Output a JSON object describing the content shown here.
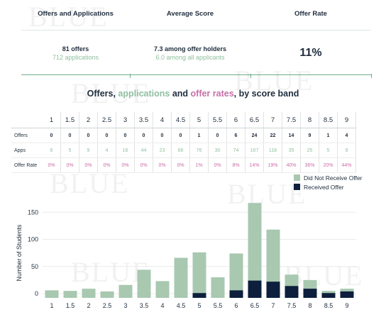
{
  "summary": {
    "col1": {
      "heading": "Offers and Applications",
      "line1": "81 offers",
      "line2": "712 applications"
    },
    "col2": {
      "heading": "Average Score",
      "line1": "7.3 among offer holders",
      "line2": "6.0 among all applicants"
    },
    "col3": {
      "heading": "Offer Rate",
      "value": "11%"
    }
  },
  "title": {
    "part1": "Offers, ",
    "part2": "applications",
    "part3": " and ",
    "part4": "offer rates",
    "part5": ", by score band"
  },
  "table": {
    "row_labels": [
      "Offers",
      "Apps",
      "Offer Rate"
    ],
    "bands": [
      "1",
      "1.5",
      "2",
      "2.5",
      "3",
      "3.5",
      "4",
      "4.5",
      "5",
      "5.5",
      "6",
      "6.5",
      "7",
      "7.5",
      "8",
      "8.5",
      "9"
    ],
    "offers": [
      "0",
      "0",
      "0",
      "0",
      "0",
      "0",
      "0",
      "0",
      "1",
      "0",
      "6",
      "24",
      "22",
      "14",
      "9",
      "1",
      "4"
    ],
    "apps": [
      "6",
      "5",
      "9",
      "4",
      "16",
      "44",
      "23",
      "66",
      "76",
      "30",
      "74",
      "167",
      "118",
      "35",
      "25",
      "5",
      "9"
    ],
    "rates": [
      "0%",
      "0%",
      "0%",
      "0%",
      "0%",
      "0%",
      "0%",
      "0%",
      "1%",
      "0%",
      "8%",
      "14%",
      "19%",
      "40%",
      "36%",
      "20%",
      "44%"
    ]
  },
  "watermark": "BLUE",
  "colors": {
    "not_offer": "#a8c8b0",
    "offer": "#0d1f3c",
    "apps": "#8fbf9f",
    "rate": "#c86fa8",
    "text": "#1f2d3d"
  },
  "chart_data": {
    "type": "bar",
    "stacked": true,
    "categories": [
      "1",
      "1.5",
      "2",
      "2.5",
      "3",
      "3.5",
      "4",
      "4.5",
      "5",
      "5.5",
      "6",
      "6.5",
      "7",
      "7.5",
      "8",
      "8.5",
      "9"
    ],
    "series": [
      {
        "name": "Did Not Receive Offer",
        "values": [
          6,
          5,
          9,
          4,
          16,
          44,
          23,
          66,
          75,
          30,
          68,
          143,
          96,
          21,
          16,
          4,
          5
        ]
      },
      {
        "name": "Received Offer",
        "values": [
          0,
          0,
          0,
          0,
          0,
          0,
          0,
          0,
          1,
          0,
          6,
          24,
          22,
          14,
          9,
          1,
          4
        ]
      }
    ],
    "ylabel": "Number of Students",
    "yticks": [
      0,
      50,
      100,
      150
    ],
    "ylim": [
      -10,
      170
    ],
    "legend": "top-right"
  }
}
